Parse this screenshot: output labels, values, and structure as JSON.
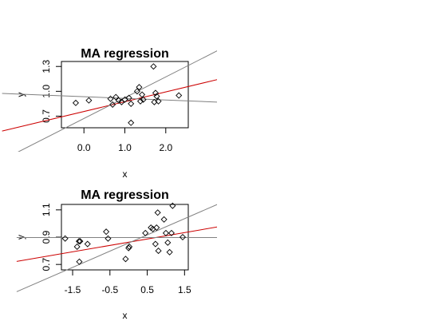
{
  "chart_data": [
    {
      "type": "scatter",
      "title": "MA regression",
      "xlabel": "x",
      "ylabel": "y",
      "xlim": [
        -0.55,
        2.55
      ],
      "ylim": [
        0.56,
        1.36
      ],
      "xticks": [
        0.0,
        1.0,
        2.0
      ],
      "xtick_labels": [
        "0.0",
        "1.0",
        "2.0"
      ],
      "yticks": [
        0.7,
        1.0,
        1.3
      ],
      "ytick_labels": [
        "0.7",
        "1.0",
        "1.3"
      ],
      "points": [
        {
          "x": -0.2,
          "y": 0.86
        },
        {
          "x": 0.12,
          "y": 0.89
        },
        {
          "x": 0.65,
          "y": 0.91
        },
        {
          "x": 0.7,
          "y": 0.84
        },
        {
          "x": 0.78,
          "y": 0.93
        },
        {
          "x": 0.85,
          "y": 0.89
        },
        {
          "x": 0.92,
          "y": 0.87
        },
        {
          "x": 1.0,
          "y": 0.9
        },
        {
          "x": 1.1,
          "y": 0.92
        },
        {
          "x": 1.15,
          "y": 0.62
        },
        {
          "x": 1.15,
          "y": 0.85
        },
        {
          "x": 1.3,
          "y": 1.0
        },
        {
          "x": 1.35,
          "y": 1.05
        },
        {
          "x": 1.38,
          "y": 0.88
        },
        {
          "x": 1.42,
          "y": 0.96
        },
        {
          "x": 1.45,
          "y": 0.9
        },
        {
          "x": 1.7,
          "y": 1.3
        },
        {
          "x": 1.72,
          "y": 0.87
        },
        {
          "x": 1.75,
          "y": 0.98
        },
        {
          "x": 1.78,
          "y": 0.94
        },
        {
          "x": 1.82,
          "y": 0.88
        },
        {
          "x": 2.32,
          "y": 0.95
        }
      ],
      "lines": [
        {
          "color": "#cc0000",
          "x1": -2.0,
          "y1": 0.52,
          "x2": 3.5,
          "y2": 1.17
        },
        {
          "color": "#808080",
          "x1": -2.0,
          "y1": 0.17,
          "x2": 3.5,
          "y2": 1.55
        },
        {
          "color": "#808080",
          "x1": -2.0,
          "y1": 0.975,
          "x2": 3.5,
          "y2": 0.865
        }
      ]
    },
    {
      "type": "scatter",
      "title": "MA regression",
      "xlabel": "x",
      "ylabel": "y",
      "xlim": [
        -1.8,
        1.6
      ],
      "ylim": [
        0.66,
        1.14
      ],
      "xticks": [
        -1.5,
        -0.5,
        0.5,
        1.5
      ],
      "xtick_labels": [
        "-1.5",
        "-0.5",
        "0.5",
        "1.5"
      ],
      "yticks": [
        0.7,
        0.9,
        1.1
      ],
      "ytick_labels": [
        "0.7",
        "0.9",
        "1.1"
      ],
      "points": [
        {
          "x": -1.7,
          "y": 0.89
        },
        {
          "x": -1.38,
          "y": 0.83
        },
        {
          "x": -1.33,
          "y": 0.87
        },
        {
          "x": -1.3,
          "y": 0.87
        },
        {
          "x": -1.32,
          "y": 0.72
        },
        {
          "x": -1.1,
          "y": 0.85
        },
        {
          "x": -0.6,
          "y": 0.94
        },
        {
          "x": -0.55,
          "y": 0.89
        },
        {
          "x": -0.08,
          "y": 0.74
        },
        {
          "x": 0.0,
          "y": 0.82
        },
        {
          "x": 0.02,
          "y": 0.83
        },
        {
          "x": 0.45,
          "y": 0.93
        },
        {
          "x": 0.6,
          "y": 0.97
        },
        {
          "x": 0.65,
          "y": 0.96
        },
        {
          "x": 0.72,
          "y": 0.85
        },
        {
          "x": 0.75,
          "y": 0.97
        },
        {
          "x": 0.78,
          "y": 1.08
        },
        {
          "x": 0.8,
          "y": 0.8
        },
        {
          "x": 0.95,
          "y": 1.03
        },
        {
          "x": 1.0,
          "y": 0.93
        },
        {
          "x": 1.05,
          "y": 0.86
        },
        {
          "x": 1.1,
          "y": 0.79
        },
        {
          "x": 1.15,
          "y": 0.93
        },
        {
          "x": 1.18,
          "y": 1.13
        },
        {
          "x": 1.45,
          "y": 0.9
        }
      ],
      "lines": [
        {
          "color": "#cc0000",
          "x1": -3.0,
          "y1": 0.722,
          "x2": 3.0,
          "y2": 1.004
        },
        {
          "color": "#808080",
          "x1": -3.0,
          "y1": 0.5,
          "x2": 3.0,
          "y2": 1.214
        },
        {
          "color": "#808080",
          "x1": -3.0,
          "y1": 0.897,
          "x2": 3.0,
          "y2": 0.897
        }
      ]
    }
  ]
}
